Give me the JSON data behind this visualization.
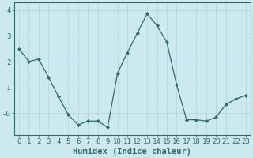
{
  "x": [
    0,
    1,
    2,
    3,
    4,
    5,
    6,
    7,
    8,
    9,
    10,
    11,
    12,
    13,
    14,
    15,
    16,
    17,
    18,
    19,
    20,
    21,
    22,
    23
  ],
  "y": [
    2.5,
    2.0,
    2.1,
    1.4,
    0.65,
    -0.05,
    -0.45,
    -0.3,
    -0.3,
    -0.55,
    1.55,
    2.35,
    3.1,
    3.85,
    3.4,
    2.75,
    1.1,
    -0.25,
    -0.25,
    -0.3,
    -0.15,
    0.35,
    0.55,
    0.7
  ],
  "line_color": "#2e6b6b",
  "marker": "D",
  "marker_size": 2,
  "bg_color": "#cce9f0",
  "grid_color": "#aed4de",
  "xlabel": "Humidex (Indice chaleur)",
  "xlim": [
    -0.5,
    23.5
  ],
  "ylim": [
    -0.85,
    4.3
  ],
  "ytick_labels": [
    "-0",
    "1",
    "2",
    "3",
    "4"
  ],
  "ytick_vals": [
    0,
    1,
    2,
    3,
    4
  ],
  "xticks": [
    0,
    1,
    2,
    3,
    4,
    5,
    6,
    7,
    8,
    9,
    10,
    11,
    12,
    13,
    14,
    15,
    16,
    17,
    18,
    19,
    20,
    21,
    22,
    23
  ],
  "xlabel_fontsize": 7.5,
  "tick_fontsize": 6.5
}
